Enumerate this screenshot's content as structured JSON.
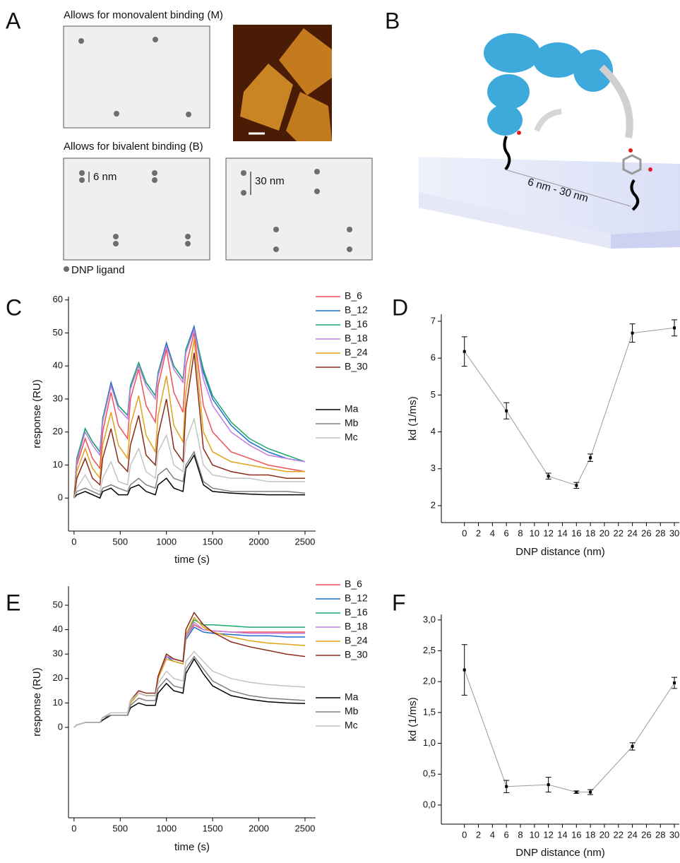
{
  "panel_labels": [
    "A",
    "B",
    "C",
    "D",
    "E",
    "F"
  ],
  "diagram": {
    "monovalent_heading": "Allows for monovalent binding (M)",
    "bivalent_heading": "Allows for bivalent binding (B)",
    "spacing_6": "6 nm",
    "spacing_30": "30 nm",
    "legend": "DNP ligand",
    "distance": "6 nm - 30 nm"
  },
  "chart_data": [
    {
      "type": "line",
      "x_label": "time (s)",
      "y_label": "response (RU)",
      "xlim": [
        -60,
        2615
      ],
      "xticks": [
        0,
        500,
        1000,
        1500,
        2000,
        2500
      ],
      "ylim": [
        -10,
        61
      ],
      "yticks": [
        0,
        10,
        20,
        30,
        40,
        50,
        60
      ],
      "x": [
        0,
        30,
        120,
        200,
        280,
        310,
        400,
        480,
        580,
        610,
        700,
        780,
        880,
        910,
        1000,
        1080,
        1180,
        1210,
        1300,
        1400,
        1500,
        1700,
        1900,
        2100,
        2300,
        2500
      ],
      "series": [
        {
          "name": "B_6",
          "color": "#f0505a",
          "values": [
            0,
            10,
            18,
            12,
            9,
            20,
            32,
            22,
            18,
            30,
            39,
            28,
            23,
            34,
            45,
            32,
            26,
            40,
            50,
            28,
            20,
            14,
            12,
            10,
            9,
            8
          ]
        },
        {
          "name": "B_12",
          "color": "#1f6fd1",
          "values": [
            0,
            12,
            21,
            17,
            14,
            24,
            35,
            28,
            25,
            34,
            41,
            35,
            31,
            38,
            47,
            40,
            36,
            45,
            52,
            38,
            30,
            22,
            17,
            14,
            12,
            11
          ]
        },
        {
          "name": "B_16",
          "color": "#1aa86a",
          "values": [
            0,
            12,
            21,
            17,
            14,
            24,
            34,
            28,
            25,
            34,
            41,
            35,
            31,
            38,
            46,
            40,
            36,
            45,
            51,
            39,
            31,
            23,
            18,
            15,
            13,
            11
          ]
        },
        {
          "name": "B_18",
          "color": "#c07ae0",
          "values": [
            0,
            11,
            20,
            16,
            13,
            23,
            34,
            27,
            24,
            33,
            40,
            34,
            30,
            37,
            46,
            39,
            35,
            44,
            51,
            36,
            28,
            20,
            16,
            13,
            12,
            11
          ]
        },
        {
          "name": "B_24",
          "color": "#e0a21a",
          "values": [
            0,
            8,
            15,
            9,
            6,
            16,
            26,
            16,
            12,
            22,
            31,
            19,
            14,
            25,
            37,
            22,
            17,
            32,
            48,
            20,
            14,
            11,
            10,
            9,
            8,
            8
          ]
        },
        {
          "name": "B_30",
          "color": "#8b2a1a",
          "values": [
            0,
            6,
            12,
            6,
            4,
            12,
            21,
            11,
            8,
            16,
            25,
            13,
            10,
            19,
            30,
            15,
            11,
            27,
            44,
            15,
            10,
            8,
            7,
            7,
            6,
            6
          ]
        },
        {
          "name": "Ma",
          "color": "#000000",
          "values": [
            0,
            1,
            2,
            1,
            0,
            2,
            3,
            1,
            1,
            3,
            4,
            2,
            1,
            4,
            6,
            3,
            2,
            9,
            13,
            4,
            2,
            1.5,
            1.2,
            1,
            1,
            1
          ]
        },
        {
          "name": "Mb",
          "color": "#808080",
          "values": [
            0,
            2,
            3,
            2,
            1,
            3,
            4,
            3,
            2,
            4,
            6,
            4,
            3,
            7,
            9,
            6,
            5,
            10,
            14,
            5,
            3,
            2,
            2,
            2,
            2,
            1.5
          ]
        },
        {
          "name": "Mc",
          "color": "#c4c4c4",
          "values": [
            0,
            3,
            7,
            3,
            2,
            6,
            11,
            5,
            4,
            10,
            15,
            8,
            6,
            14,
            19,
            10,
            8,
            17,
            24,
            10,
            7,
            6,
            6,
            5,
            5,
            5
          ]
        }
      ]
    },
    {
      "type": "scatter",
      "x_label": "DNP distance (nm)",
      "y_label": "kd (1/ms)",
      "color": "#000000",
      "line_color": "#9a9a9a",
      "xlim": [
        -3.3,
        30.7
      ],
      "xticks": [
        0,
        2,
        4,
        6,
        8,
        10,
        12,
        14,
        16,
        18,
        20,
        22,
        24,
        26,
        28,
        30
      ],
      "ylim": [
        1.54,
        7.19
      ],
      "yticks": [
        2,
        3,
        4,
        5,
        6,
        7
      ],
      "x": [
        0,
        6,
        12,
        16,
        18,
        24,
        30
      ],
      "values": [
        6.18,
        4.57,
        2.8,
        2.55,
        3.3,
        6.68,
        6.82
      ],
      "errors": [
        0.4,
        0.22,
        0.08,
        0.08,
        0.1,
        0.25,
        0.22
      ]
    },
    {
      "type": "line",
      "x_label": "time (s)",
      "y_label": "response (RU)",
      "xlim": [
        -60,
        2615
      ],
      "xticks": [
        0,
        500,
        1000,
        1500,
        2000,
        2500
      ],
      "ylim": [
        -37,
        57.8
      ],
      "yticks": [
        0,
        10,
        20,
        30,
        40,
        50
      ],
      "x": [
        0,
        30,
        120,
        200,
        280,
        310,
        400,
        480,
        580,
        610,
        700,
        780,
        880,
        910,
        1000,
        1080,
        1180,
        1210,
        1300,
        1400,
        1500,
        1700,
        1900,
        2100,
        2300,
        2500
      ],
      "series": [
        {
          "name": "B_6",
          "color": "#f0505a",
          "values": [
            0,
            1,
            2,
            2,
            2,
            4,
            5,
            5,
            5,
            10,
            14,
            13,
            13,
            20,
            29,
            28,
            27,
            37,
            42,
            40,
            39.5,
            39,
            39,
            39,
            39,
            39
          ]
        },
        {
          "name": "B_12",
          "color": "#1f6fd1",
          "values": [
            0,
            1,
            2,
            2,
            2,
            4,
            5,
            5,
            5,
            10,
            14,
            13,
            13,
            20,
            29,
            27,
            26,
            36,
            41,
            39,
            38.5,
            38,
            37.5,
            37.5,
            37,
            37
          ]
        },
        {
          "name": "B_16",
          "color": "#1aa86a",
          "values": [
            0,
            1,
            2,
            2,
            2,
            4,
            5,
            5,
            5,
            10,
            14,
            13,
            13,
            20,
            29,
            28,
            27,
            38,
            44,
            42,
            42,
            41.5,
            41,
            41,
            41,
            41
          ]
        },
        {
          "name": "B_18",
          "color": "#c07ae0",
          "values": [
            0,
            1,
            2,
            2,
            2,
            4,
            5,
            5,
            5,
            10,
            14,
            13,
            13,
            20,
            29,
            28,
            27,
            37,
            43,
            40,
            39.5,
            39,
            38.5,
            38.5,
            38.5,
            38.5
          ]
        },
        {
          "name": "B_24",
          "color": "#e0a21a",
          "values": [
            0,
            1,
            2,
            2,
            2,
            4,
            5,
            5,
            5,
            10,
            14,
            13,
            13,
            20,
            28,
            27,
            26,
            38,
            45,
            41,
            39,
            37,
            35.5,
            34.5,
            34,
            33.5
          ]
        },
        {
          "name": "B_30",
          "color": "#8b2a1a",
          "values": [
            0,
            1,
            2,
            2,
            2,
            4,
            6,
            6,
            6,
            11,
            15,
            14,
            14,
            21,
            30,
            28,
            27,
            40,
            47,
            42,
            39,
            35,
            33,
            31.5,
            30,
            29
          ]
        },
        {
          "name": "Ma",
          "color": "#000000",
          "values": [
            0,
            1,
            2,
            2,
            2,
            3,
            5,
            5,
            5,
            8,
            10,
            9,
            9,
            14,
            18,
            15,
            14,
            22,
            28,
            22,
            17,
            13,
            11.5,
            10.5,
            10,
            9.8
          ]
        },
        {
          "name": "Mb",
          "color": "#808080",
          "values": [
            0,
            1,
            2,
            2,
            2,
            4,
            5,
            5,
            5,
            9,
            12,
            11,
            11,
            16,
            20,
            17,
            16,
            24,
            29,
            24,
            19,
            15,
            13,
            12,
            11.5,
            11
          ]
        },
        {
          "name": "Mc",
          "color": "#c4c4c4",
          "values": [
            0,
            1,
            2,
            2,
            2,
            4,
            6,
            6,
            6,
            11,
            14,
            13,
            13,
            18,
            23,
            20,
            19,
            27,
            31,
            27,
            23,
            20,
            18.5,
            17.5,
            17,
            16.5
          ]
        }
      ]
    },
    {
      "type": "scatter",
      "x_label": "DNP distance (nm)",
      "y_label": "kd (1/ms)",
      "color": "#000000",
      "line_color": "#9a9a9a",
      "xlim": [
        -3.3,
        30.7
      ],
      "xticks": [
        0,
        2,
        4,
        6,
        8,
        10,
        12,
        14,
        16,
        18,
        20,
        22,
        24,
        26,
        28,
        30
      ],
      "ylim": [
        -0.31,
        3.09
      ],
      "yticks": [
        {
          "value": 0,
          "label": "0,0"
        },
        {
          "value": 0.5,
          "label": "0,5"
        },
        {
          "value": 1,
          "label": "1,0"
        },
        {
          "value": 1.5,
          "label": "1,5"
        },
        {
          "value": 2,
          "label": "2,0"
        },
        {
          "value": 2.5,
          "label": "2,5"
        },
        {
          "value": 3,
          "label": "3,0"
        }
      ],
      "x": [
        0,
        6,
        12,
        16,
        18,
        24,
        30
      ],
      "values": [
        2.19,
        0.3,
        0.33,
        0.21,
        0.21,
        0.95,
        1.98
      ],
      "errors": [
        0.41,
        0.1,
        0.12,
        0.02,
        0.04,
        0.06,
        0.09
      ]
    }
  ]
}
